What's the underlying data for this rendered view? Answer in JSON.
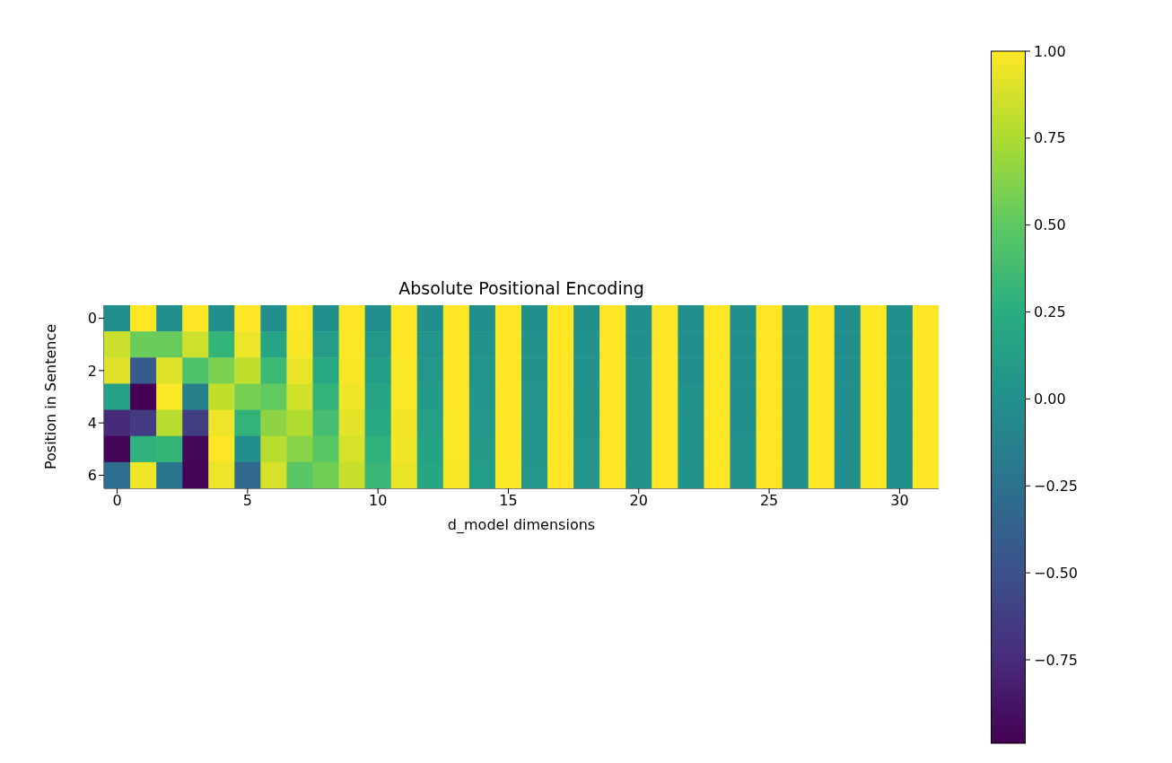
{
  "chart_data": {
    "type": "heatmap",
    "title": "Absolute Positional Encoding",
    "xlabel": "d_model dimensions",
    "ylabel": "Position in Sentence",
    "categories": [
      "0",
      null,
      null,
      null,
      null,
      "5",
      null,
      null,
      null,
      null,
      "10",
      null,
      null,
      null,
      null,
      "15",
      null,
      null,
      null,
      null,
      "20",
      null,
      null,
      null,
      null,
      "25",
      null,
      null,
      null,
      null,
      "30",
      null
    ],
    "y_categories": [
      "0",
      null,
      "2",
      null,
      "4",
      null,
      "6"
    ],
    "cells": [
      [
        0,
        1,
        0,
        1,
        0,
        1,
        0,
        1,
        0,
        1,
        0,
        1,
        0,
        1,
        0,
        1,
        0,
        1,
        0,
        1,
        0,
        1,
        0,
        1,
        0,
        1,
        0,
        1,
        0,
        1,
        0,
        1
      ],
      [
        0.84,
        0.54,
        0.53,
        0.85,
        0.31,
        0.95,
        0.18,
        0.98,
        0.1,
        0.99,
        0.06,
        1,
        0.03,
        1,
        0.02,
        1,
        0.01,
        1,
        0.01,
        1,
        0,
        1,
        0,
        1,
        0,
        1,
        0,
        1,
        0,
        1,
        0,
        1
      ],
      [
        0.91,
        -0.42,
        0.9,
        0.43,
        0.59,
        0.81,
        0.35,
        0.94,
        0.2,
        0.98,
        0.11,
        0.99,
        0.06,
        1,
        0.04,
        1,
        0.02,
        1,
        0.01,
        1,
        0.01,
        1,
        0,
        1,
        0,
        1,
        0,
        1,
        0,
        1,
        0,
        1
      ],
      [
        0.14,
        -0.99,
        0.99,
        -0.12,
        0.81,
        0.58,
        0.51,
        0.86,
        0.3,
        0.96,
        0.17,
        0.99,
        0.09,
        1,
        0.05,
        1,
        0.03,
        1,
        0.02,
        1,
        0.01,
        1,
        0.01,
        1,
        0,
        1,
        0,
        1,
        0,
        1,
        0,
        1
      ],
      [
        -0.76,
        -0.65,
        0.78,
        -0.63,
        0.95,
        0.3,
        0.65,
        0.76,
        0.39,
        0.92,
        0.22,
        0.97,
        0.13,
        0.99,
        0.07,
        1,
        0.04,
        1,
        0.02,
        1,
        0.01,
        1,
        0.01,
        1,
        0,
        1,
        0,
        1,
        0,
        1,
        0,
        1
      ],
      [
        -0.96,
        0.28,
        0.32,
        -0.95,
        1,
        -0.01,
        0.78,
        0.63,
        0.48,
        0.88,
        0.28,
        0.96,
        0.16,
        0.99,
        0.09,
        1,
        0.05,
        1,
        0.03,
        1,
        0.02,
        1,
        0.01,
        1,
        0.01,
        1,
        0,
        1,
        0,
        1,
        0,
        1
      ],
      [
        -0.28,
        0.96,
        -0.23,
        -0.97,
        0.95,
        -0.32,
        0.88,
        0.48,
        0.56,
        0.83,
        0.33,
        0.94,
        0.19,
        0.98,
        0.11,
        0.99,
        0.06,
        1,
        0.03,
        1,
        0.02,
        1,
        0.01,
        1,
        0.01,
        1,
        0,
        1,
        0,
        1,
        0,
        1
      ]
    ],
    "clim": [
      -0.99,
      1
    ],
    "cticks": [
      {
        "value": -0.75,
        "label": "−0.75"
      },
      {
        "value": -0.5,
        "label": "−0.50"
      },
      {
        "value": -0.25,
        "label": "−0.25"
      },
      {
        "value": 0,
        "label": "0.00"
      },
      {
        "value": 0.25,
        "label": "0.25"
      },
      {
        "value": 0.5,
        "label": "0.50"
      },
      {
        "value": 0.75,
        "label": "0.75"
      },
      {
        "value": 1,
        "label": "1.00"
      }
    ]
  }
}
